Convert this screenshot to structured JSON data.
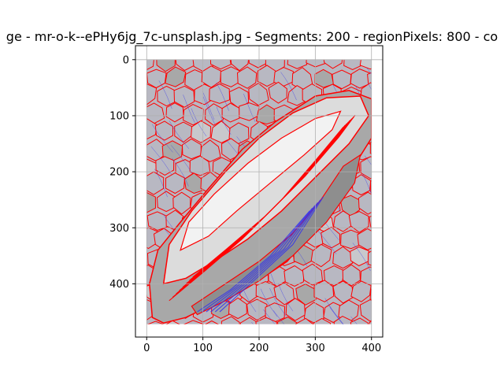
{
  "figure": {
    "title": "ge - mr-o-k--ePHy6jg_7c-unsplash.jpg - Segments: 200 - regionPixels: 800 - co"
  },
  "chart_data": {
    "type": "heatmap",
    "title": "ge - mr-o-k--ePHy6jg_7c-unsplash.jpg - Segments: 200 - regionPixels: 800 - co",
    "xlabel": "",
    "ylabel": "",
    "xlim": [
      -20,
      420
    ],
    "ylim": [
      495,
      -25
    ],
    "image_extent": [
      0,
      400,
      472,
      0
    ],
    "x_ticks": [
      0,
      100,
      200,
      300,
      400
    ],
    "x_tick_labels": [
      "0",
      "100",
      "200",
      "300",
      "400"
    ],
    "y_ticks": [
      0,
      100,
      200,
      300,
      400
    ],
    "y_tick_labels": [
      "0",
      "100",
      "200",
      "300",
      "400"
    ],
    "grid": true,
    "colors": {
      "background_region": "#b8b8c2",
      "light_region": "#dcdcdc",
      "white_region": "#f2f2f2",
      "dark_region": "#8e8e8e",
      "mid_region": "#a8a8a8",
      "segment_boundary": "#ff0000",
      "flow_lines": "#3333ee",
      "grid": "#b0b0b0"
    }
  }
}
